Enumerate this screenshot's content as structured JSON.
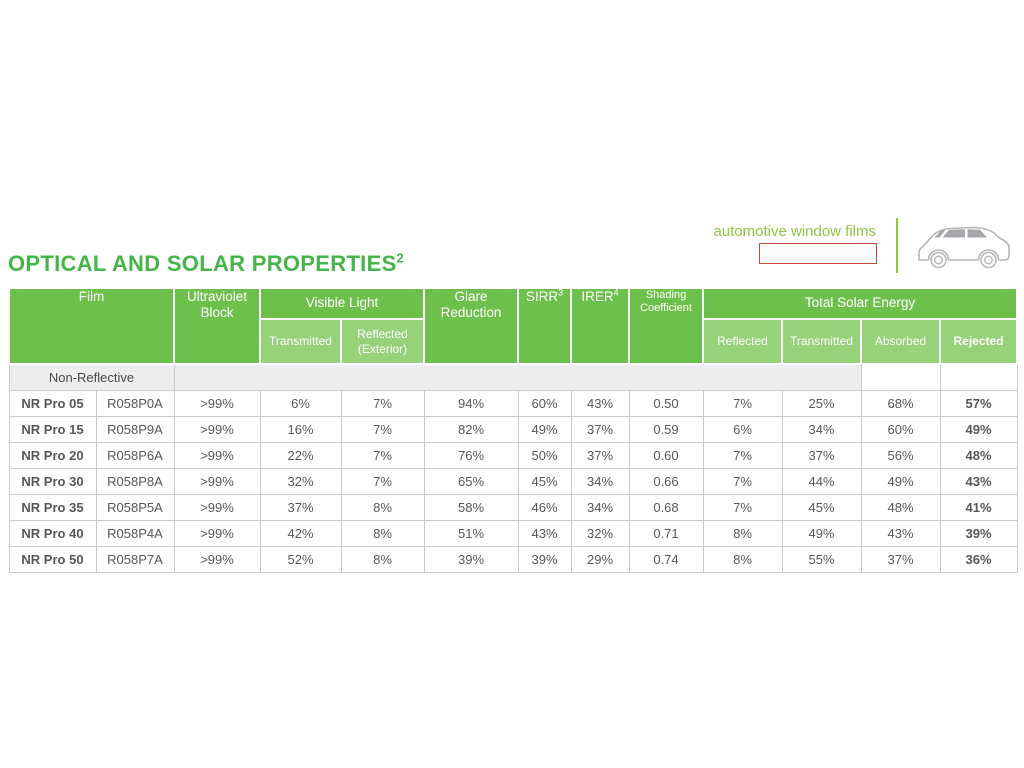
{
  "brand": {
    "tagline": "automotive window films"
  },
  "title": {
    "text": "OPTICAL AND SOLAR PROPERTIES",
    "superscript": "2"
  },
  "colors": {
    "header_green": "#6ec04c",
    "subheader_green": "#97d179",
    "title_green": "#45b449",
    "tagline_green": "#8dc63f",
    "redaction_border_red": "#d0453e",
    "section_row_gray": "#ededee",
    "body_text_gray": "#565759"
  },
  "table": {
    "headers": {
      "film": "Film",
      "uv_block": "Ultraviolet Block",
      "visible_light": "Visible Light",
      "vl_transmitted": "Transmitted",
      "vl_reflected": "Reflected (Exterior)",
      "glare_reduction": "Glare Reduction",
      "sirr": "SIRR",
      "sirr_sup": "3",
      "irer": "IRER",
      "irer_sup": "4",
      "shading_coefficient": "Shading Coefficient",
      "total_solar_energy": "Total Solar Energy",
      "tse_reflected": "Reflected",
      "tse_transmitted": "Transmitted",
      "tse_absorbed": "Absorbed",
      "tse_rejected": "Rejected"
    },
    "section_label": "Non-Reflective",
    "rows": [
      {
        "name": "NR Pro 05",
        "code": "R058P0A",
        "uv_block": ">99%",
        "vl_transmitted": "6%",
        "vl_reflected": "7%",
        "glare_reduction": "94%",
        "sirr": "60%",
        "irer": "43%",
        "shading_coefficient": "0.50",
        "tse_reflected": "7%",
        "tse_transmitted": "25%",
        "tse_absorbed": "68%",
        "tse_rejected": "57%"
      },
      {
        "name": "NR Pro 15",
        "code": "R058P9A",
        "uv_block": ">99%",
        "vl_transmitted": "16%",
        "vl_reflected": "7%",
        "glare_reduction": "82%",
        "sirr": "49%",
        "irer": "37%",
        "shading_coefficient": "0.59",
        "tse_reflected": "6%",
        "tse_transmitted": "34%",
        "tse_absorbed": "60%",
        "tse_rejected": "49%"
      },
      {
        "name": "NR Pro 20",
        "code": "R058P6A",
        "uv_block": ">99%",
        "vl_transmitted": "22%",
        "vl_reflected": "7%",
        "glare_reduction": "76%",
        "sirr": "50%",
        "irer": "37%",
        "shading_coefficient": "0.60",
        "tse_reflected": "7%",
        "tse_transmitted": "37%",
        "tse_absorbed": "56%",
        "tse_rejected": "48%"
      },
      {
        "name": "NR Pro 30",
        "code": "R058P8A",
        "uv_block": ">99%",
        "vl_transmitted": "32%",
        "vl_reflected": "7%",
        "glare_reduction": "65%",
        "sirr": "45%",
        "irer": "34%",
        "shading_coefficient": "0.66",
        "tse_reflected": "7%",
        "tse_transmitted": "44%",
        "tse_absorbed": "49%",
        "tse_rejected": "43%"
      },
      {
        "name": "NR Pro 35",
        "code": "R058P5A",
        "uv_block": ">99%",
        "vl_transmitted": "37%",
        "vl_reflected": "8%",
        "glare_reduction": "58%",
        "sirr": "46%",
        "irer": "34%",
        "shading_coefficient": "0.68",
        "tse_reflected": "7%",
        "tse_transmitted": "45%",
        "tse_absorbed": "48%",
        "tse_rejected": "41%"
      },
      {
        "name": "NR Pro 40",
        "code": "R058P4A",
        "uv_block": ">99%",
        "vl_transmitted": "42%",
        "vl_reflected": "8%",
        "glare_reduction": "51%",
        "sirr": "43%",
        "irer": "32%",
        "shading_coefficient": "0.71",
        "tse_reflected": "8%",
        "tse_transmitted": "49%",
        "tse_absorbed": "43%",
        "tse_rejected": "39%"
      },
      {
        "name": "NR Pro 50",
        "code": "R058P7A",
        "uv_block": ">99%",
        "vl_transmitted": "52%",
        "vl_reflected": "8%",
        "glare_reduction": "39%",
        "sirr": "39%",
        "irer": "29%",
        "shading_coefficient": "0.74",
        "tse_reflected": "8%",
        "tse_transmitted": "55%",
        "tse_absorbed": "37%",
        "tse_rejected": "36%"
      }
    ]
  }
}
